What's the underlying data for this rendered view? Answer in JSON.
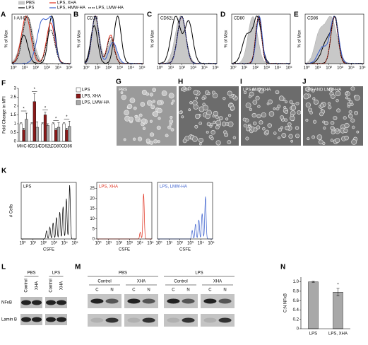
{
  "legend": [
    {
      "name": "PBS",
      "color": "#c8c8c8"
    },
    {
      "name": "LPS, XHA",
      "color": "#e0301e"
    },
    {
      "name": "LPS",
      "color": "#000000"
    },
    {
      "name": "LPS, HMW-HA",
      "color": "#3a5fcd"
    },
    {
      "name": "LPS, LMW-HA",
      "color": "#000000",
      "dashed": true
    }
  ],
  "flow": {
    "y_label": "% of Max",
    "log_x": true,
    "xlim": [
      1,
      100000
    ],
    "xticks": [
      {
        "value": 1,
        "label": "10⁰"
      },
      {
        "value": 10,
        "label": "10¹"
      },
      {
        "value": 100,
        "label": "10²"
      },
      {
        "value": 1000,
        "label": "10³"
      },
      {
        "value": 10000,
        "label": "10⁴"
      },
      {
        "value": 100000,
        "label": "10⁵"
      }
    ],
    "panels": [
      {
        "letter": "A",
        "title": "I-A/I-E"
      },
      {
        "letter": "B",
        "title": "CD14"
      },
      {
        "letter": "C",
        "title": "CD62L"
      },
      {
        "letter": "D",
        "title": "CD80"
      },
      {
        "letter": "E",
        "title": "CD86"
      }
    ]
  },
  "fold": {
    "letter": "F",
    "type": "bar",
    "y_label": "Fold Change in MFI",
    "categories": [
      "MHC-II",
      "CD14",
      "CD62L",
      "CD80",
      "CD86"
    ],
    "series": [
      {
        "name": "LPS",
        "color": "#ffffff",
        "values": [
          1,
          1,
          1,
          1,
          1
        ],
        "errors": [
          0.05,
          0.05,
          0.05,
          0.05,
          0.05
        ]
      },
      {
        "name": "LPS, XHA",
        "color": "#8b1a1a",
        "values": [
          0.65,
          2.25,
          1.5,
          0.65,
          0.65
        ],
        "errors": [
          0.1,
          0.45,
          0.15,
          0.1,
          0.1
        ]
      },
      {
        "name": "LPS, LMW-HA",
        "color": "#a8a8a8",
        "values": [
          1.25,
          0.8,
          0.9,
          0.8,
          0.85
        ],
        "errors": [
          0.35,
          0.3,
          0.1,
          0.25,
          0.3
        ]
      }
    ],
    "ylim": [
      0,
      3
    ],
    "yticks": [
      0,
      0.5,
      1,
      1.5,
      2,
      2.5,
      3
    ],
    "annotations": [
      "*",
      "*",
      "*",
      "*",
      "*"
    ]
  },
  "micro": [
    {
      "letter": "G",
      "label": "PBS"
    },
    {
      "letter": "H",
      "label": "LPS"
    },
    {
      "letter": "I",
      "label": "LPS AND XHA"
    },
    {
      "letter": "J",
      "label": "LPS AND LMW-HA"
    }
  ],
  "prolif": {
    "letter": "K",
    "y_label": "# Cells",
    "x_label": "CSFE",
    "log_x": true,
    "xlim": [
      1,
      100000
    ],
    "xticks": [
      {
        "value": 1,
        "label": "10⁰"
      },
      {
        "value": 10,
        "label": "10¹"
      },
      {
        "value": 100,
        "label": "10²"
      },
      {
        "value": 1000,
        "label": "10³"
      },
      {
        "value": 10000,
        "label": "10⁴"
      },
      {
        "value": 100000,
        "label": "10⁵"
      }
    ],
    "ylim": [
      0,
      28
    ],
    "yticks": [
      0,
      5,
      10,
      15,
      20,
      25
    ],
    "panels": [
      {
        "label": "LPS",
        "color": "#000000"
      },
      {
        "label": "LPS, XHA",
        "color": "#e0301e"
      },
      {
        "label": "LPS, LMW-HA",
        "color": "#3a5fcd"
      }
    ]
  },
  "blot_l": {
    "letter": "L",
    "groups": [
      "PBS",
      "LPS"
    ],
    "lanes": [
      "Control",
      "XHA",
      "Control",
      "XHA"
    ],
    "rows": [
      "NFκB",
      "Lamin B"
    ]
  },
  "blot_m": {
    "letter": "M",
    "groups": [
      "PBS",
      "LPS"
    ],
    "conditions": [
      "Control",
      "XHA",
      "Control",
      "XHA"
    ],
    "fractions": [
      "C",
      "N",
      "C",
      "N",
      "C",
      "N",
      "C",
      "N"
    ]
  },
  "ratio": {
    "letter": "N",
    "type": "bar",
    "y_label": "C:N NFκB",
    "categories": [
      "LPS",
      "LPS, XHA"
    ],
    "values": [
      1,
      0.78
    ],
    "errors": [
      0.01,
      0.08
    ],
    "color": "#a8a8a8",
    "ylim": [
      0,
      1.1
    ],
    "yticks": [
      0,
      0.2,
      0.4,
      0.6,
      0.8,
      {
        "value": 1,
        "label": "1.0"
      }
    ],
    "annotation": "*"
  }
}
